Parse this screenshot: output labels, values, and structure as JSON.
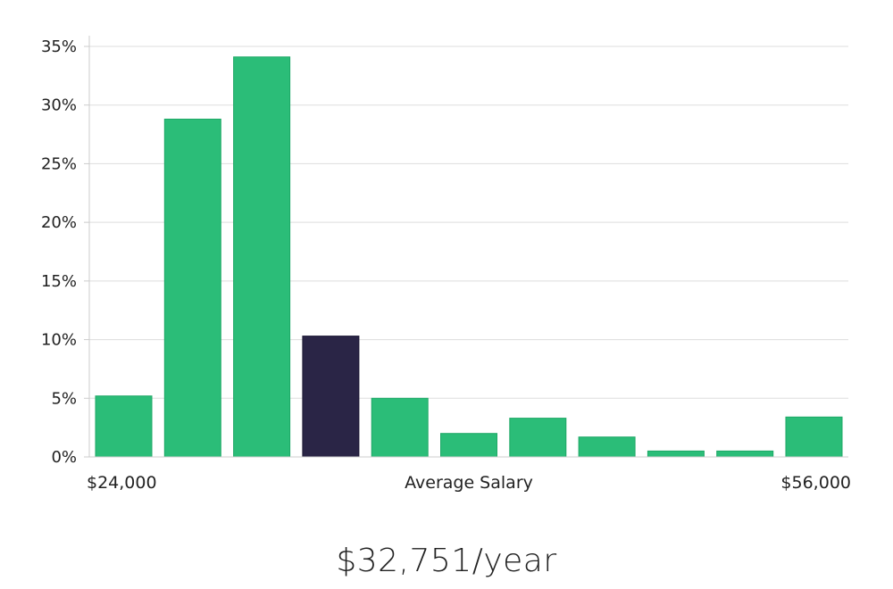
{
  "chart_data": {
    "type": "bar",
    "ylim": [
      0,
      35
    ],
    "yticks": [
      "0%",
      "5%",
      "10%",
      "15%",
      "20%",
      "25%",
      "30%",
      "35%"
    ],
    "ytick_values": [
      0,
      5,
      10,
      15,
      20,
      25,
      30,
      35
    ],
    "x_left_label": "$24,000",
    "x_center_label": "Average Salary",
    "x_right_label": "$56,000",
    "values": [
      5.2,
      28.8,
      34.1,
      10.3,
      5.0,
      2.0,
      3.3,
      1.7,
      0.5,
      0.5,
      3.4
    ],
    "highlight_index": 3,
    "grid": true,
    "colors": {
      "bar": "#2bbd78",
      "bar_edge": "#1ea866",
      "highlight": "#2a2546",
      "grid": "#dddddd",
      "axis": "#cccccc"
    }
  },
  "salary_footer": "$32,751/year"
}
